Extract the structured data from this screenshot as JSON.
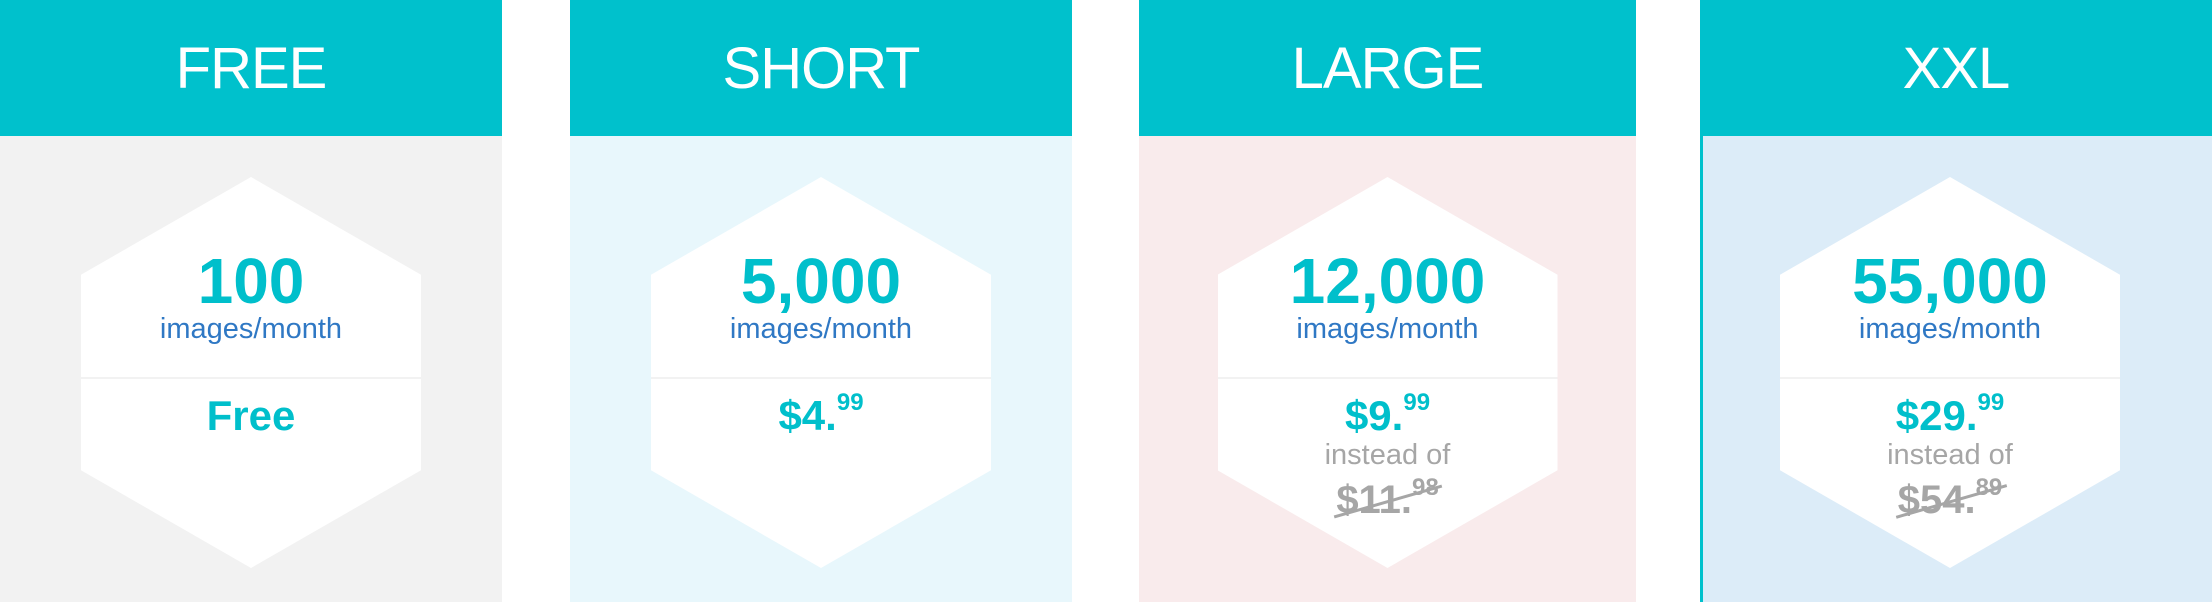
{
  "colors": {
    "accent": "#00c1cc",
    "text_blue": "#2f78c4",
    "muted": "#a6a6a6"
  },
  "plans": [
    {
      "name": "FREE",
      "images": "100",
      "unit": "images/month",
      "price": "Free",
      "background": "#f2f2f2"
    },
    {
      "name": "SHORT",
      "images": "5,000",
      "unit": "images/month",
      "price_main": "$4.",
      "price_cents": "99",
      "background": "#e8f7fc"
    },
    {
      "name": "LARGE",
      "images": "12,000",
      "unit": "images/month",
      "price_main": "$9.",
      "price_cents": "99",
      "instead_label": "instead of",
      "old_price_main": "$11.",
      "old_price_cents": "98",
      "background": "#f9ebec"
    },
    {
      "name": "XXL",
      "images": "55,000",
      "unit": "images/month",
      "price_main": "$29.",
      "price_cents": "99",
      "instead_label": "instead of",
      "old_price_main": "$54.",
      "old_price_cents": "89",
      "background": "#dcecf8"
    }
  ]
}
